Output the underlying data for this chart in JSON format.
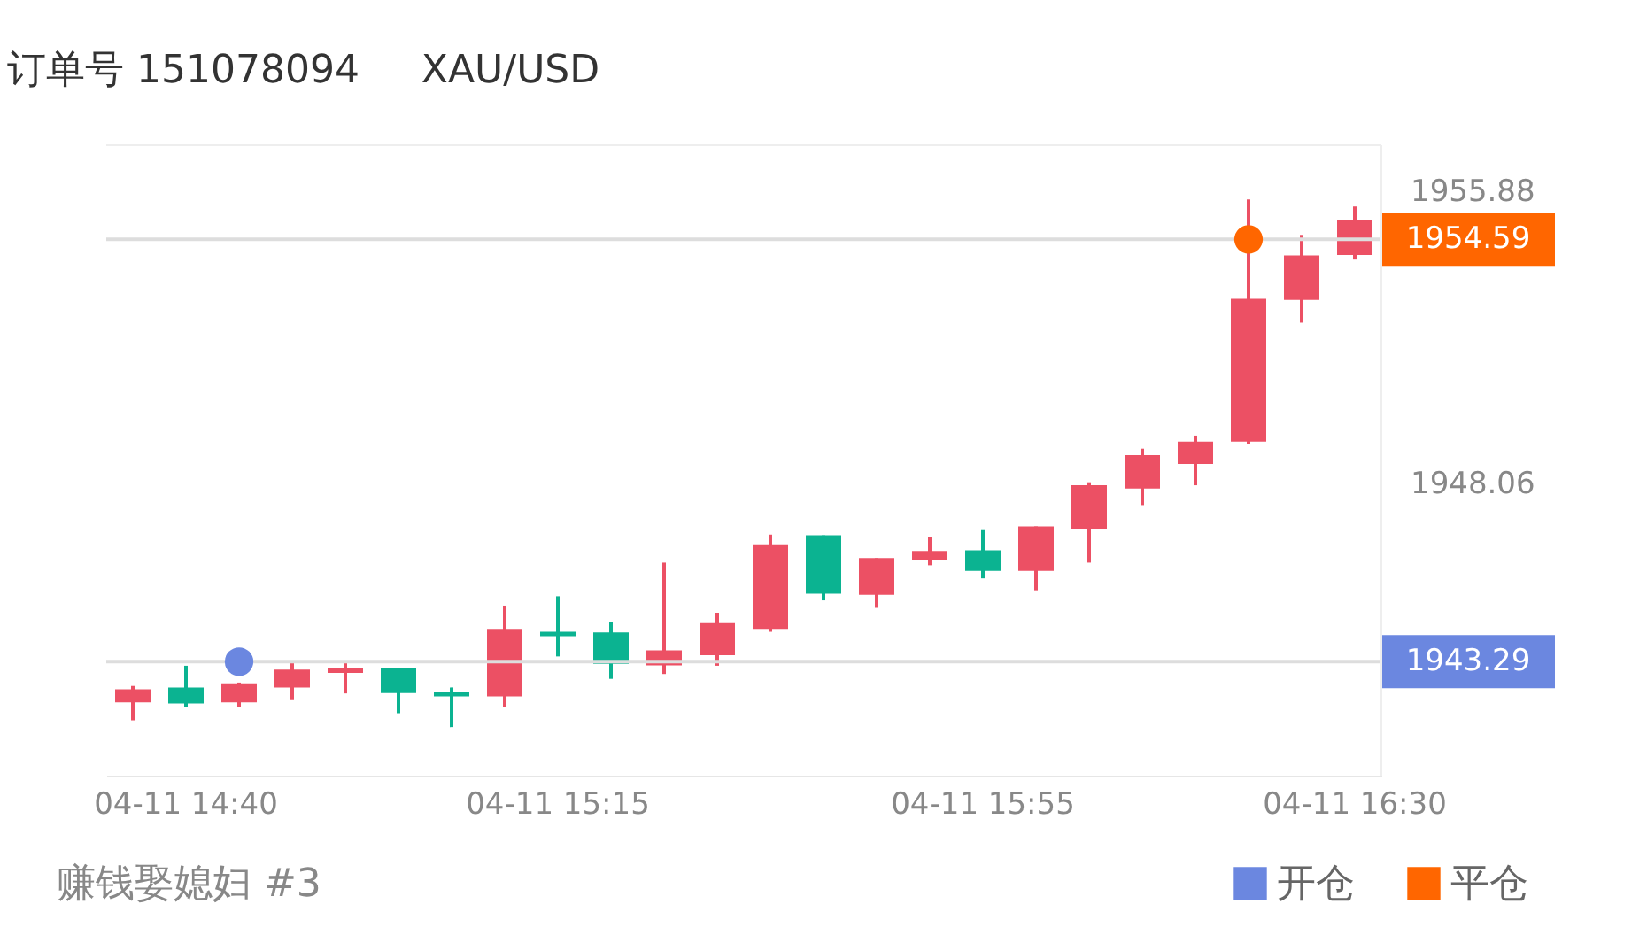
{
  "chart_data": {
    "type": "candlestick",
    "title": "订单号 151078094     XAU/USD",
    "categories": [
      null,
      "04-11 14:40",
      null,
      null,
      null,
      null,
      null,
      null,
      "04-11 15:15",
      null,
      null,
      null,
      null,
      null,
      null,
      null,
      "04-11 15:55",
      null,
      null,
      null,
      null,
      null,
      null,
      "04-11 16:30"
    ],
    "ohlc": [
      [
        1942.2,
        1942.64,
        1941.72,
        1942.55
      ],
      [
        1942.6,
        1943.18,
        1942.08,
        1942.17
      ],
      [
        1942.2,
        1942.73,
        1942.08,
        1942.71
      ],
      [
        1942.6,
        1943.31,
        1942.26,
        1943.08
      ],
      [
        1942.99,
        1943.27,
        1942.44,
        1943.12
      ],
      [
        1943.12,
        1943.12,
        1941.91,
        1942.45
      ],
      [
        1942.48,
        1942.6,
        1941.54,
        1942.36
      ],
      [
        1942.36,
        1944.79,
        1942.08,
        1944.17
      ],
      [
        1944.09,
        1945.04,
        1943.43,
        1943.97
      ],
      [
        1944.07,
        1944.35,
        1942.83,
        1943.23
      ],
      [
        1943.19,
        1945.94,
        1942.96,
        1943.59
      ],
      [
        1943.46,
        1944.6,
        1943.18,
        1944.32
      ],
      [
        1944.17,
        1946.69,
        1944.09,
        1946.43
      ],
      [
        1946.67,
        1946.67,
        1944.93,
        1945.11
      ],
      [
        1945.08,
        1946.06,
        1944.73,
        1946.06
      ],
      [
        1946.01,
        1946.62,
        1945.87,
        1946.25
      ],
      [
        1946.27,
        1946.81,
        1945.52,
        1945.72
      ],
      [
        1945.72,
        1946.91,
        1945.2,
        1946.91
      ],
      [
        1946.84,
        1948.09,
        1945.94,
        1948.01
      ],
      [
        1947.92,
        1948.99,
        1947.48,
        1948.82
      ],
      [
        1948.58,
        1949.34,
        1948.01,
        1949.18
      ],
      [
        1949.18,
        1955.66,
        1949.12,
        1953.0
      ],
      [
        1952.97,
        1954.71,
        1952.36,
        1954.16
      ],
      [
        1954.17,
        1955.47,
        1954.05,
        1955.11
      ]
    ],
    "colors": [
      "#ec5064",
      "#0bb391",
      "#ec5064",
      "#ec5064",
      "#ec5064",
      "#0bb391",
      "#0bb391",
      "#ec5064",
      "#0bb391",
      "#0bb391",
      "#ec5064",
      "#ec5064",
      "#ec5064",
      "#0bb391",
      "#ec5064",
      "#ec5064",
      "#0bb391",
      "#ec5064",
      "#ec5064",
      "#ec5064",
      "#ec5064",
      "#ec5064",
      "#ec5064",
      "#ec5064"
    ],
    "series": [
      {
        "name": "开仓",
        "type": "scatter",
        "color": "#6b87e0",
        "values": [
          null,
          null,
          1943.29,
          null,
          null,
          null,
          null,
          null,
          null,
          null,
          null,
          null,
          null,
          null,
          null,
          null,
          null,
          null,
          null,
          null,
          null,
          null,
          null,
          null
        ]
      },
      {
        "name": "平仓",
        "type": "scatter",
        "color": "#ff6600",
        "values": [
          null,
          null,
          null,
          null,
          null,
          null,
          null,
          null,
          null,
          null,
          null,
          null,
          null,
          null,
          null,
          null,
          null,
          null,
          null,
          null,
          null,
          1954.59,
          null,
          null
        ]
      }
    ],
    "ylim": [
      1940.24,
      1957.11
    ],
    "yticks": [
      1955.88,
      1948.06
    ],
    "ref_lines": [
      {
        "axis": "y",
        "value": 1954.59,
        "label": "1954.59"
      },
      {
        "axis": "y",
        "value": 1943.29,
        "label": "1943.29"
      }
    ],
    "marker": "circle",
    "legend": "bottom right",
    "annotations": [
      "赚钱娶媳妇 #3"
    ]
  }
}
